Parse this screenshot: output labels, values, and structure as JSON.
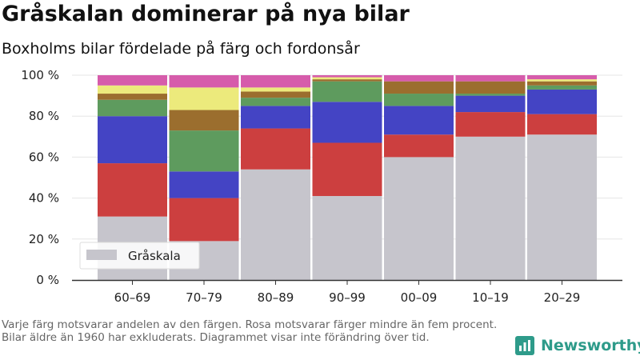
{
  "title": "Gråskalan dominerar på nya bilar",
  "subtitle": "Boxholms bilar fördelade på färg och fordonsår",
  "footnote": "Varje färg motsvarar andelen av den färgen. Rosa motsvarar färger mindre än fem procent. Bilar äldre än 1960 har exkluderats. Diagrammet visar inte förändring över tid.",
  "brand": {
    "name": "Newsworthy",
    "icon": "newsworthy-logo-icon",
    "color": "#2e9b8a"
  },
  "chart_data": {
    "type": "bar",
    "stacked": true,
    "categories": [
      "60–69",
      "70–79",
      "80–89",
      "90–99",
      "00–09",
      "10–19",
      "20–29"
    ],
    "ylim": [
      0,
      100
    ],
    "yticks": [
      0,
      20,
      40,
      60,
      80,
      100
    ],
    "ytick_labels": [
      "0 %",
      "20 %",
      "40 %",
      "60 %",
      "80 %",
      "100 %"
    ],
    "grid": true,
    "legend": {
      "position": "bottom-left",
      "entries": [
        "Gråskala"
      ]
    },
    "series": [
      {
        "name": "Gråskala",
        "color": "#c6c5cc",
        "values": [
          31,
          19,
          54,
          41,
          60,
          70,
          71
        ]
      },
      {
        "color": "#cc3f3f",
        "values": [
          26,
          21,
          20,
          26,
          11,
          12,
          10
        ]
      },
      {
        "color": "#4444c4",
        "values": [
          23,
          13,
          11,
          20,
          14,
          8,
          12
        ]
      },
      {
        "color": "#5e9b5e",
        "values": [
          8,
          20,
          4,
          10,
          6,
          1,
          2
        ]
      },
      {
        "color": "#9b6e2e",
        "values": [
          3,
          10,
          3,
          1,
          6,
          6,
          2
        ]
      },
      {
        "color": "#ecea7c",
        "values": [
          4,
          11,
          2,
          1,
          0,
          0,
          1
        ]
      },
      {
        "color": "#d65cab",
        "values": [
          5,
          6,
          6,
          1,
          3,
          3,
          2
        ]
      }
    ]
  }
}
